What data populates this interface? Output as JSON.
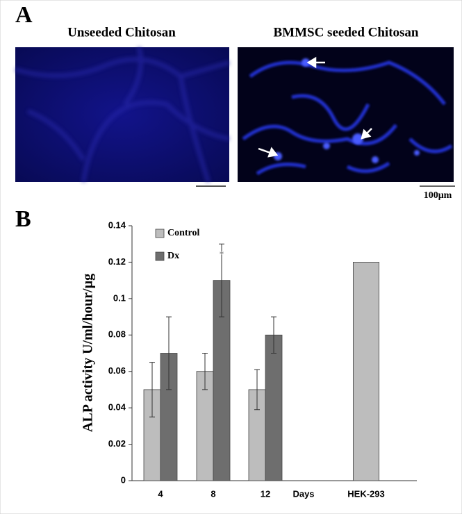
{
  "panel_a": {
    "label": "A",
    "left_caption": "Unseeded Chitosan",
    "right_caption": "BMMSC seeded Chitosan",
    "scale_bar": "100μm"
  },
  "panel_b": {
    "label": "B"
  },
  "chart_data": {
    "type": "bar",
    "y_label": "ALP activity U/ml/hour/µg",
    "x_label": "Days",
    "categories": [
      "4",
      "8",
      "12",
      "HEK-293"
    ],
    "series": [
      {
        "name": "Control",
        "color": "#bdbdbd",
        "values": [
          0.05,
          0.06,
          0.05,
          0.12
        ],
        "errors": [
          0.015,
          0.01,
          0.011,
          null
        ]
      },
      {
        "name": "Dx",
        "color": "#6e6e6e",
        "values": [
          0.07,
          0.11,
          0.08,
          null
        ],
        "errors": [
          0.02,
          0.02,
          0.01,
          null
        ]
      }
    ],
    "annotations": [
      "*"
    ],
    "ylim": [
      0,
      0.14
    ],
    "yticks": [
      0,
      0.02,
      0.04,
      0.06,
      0.08,
      0.1,
      0.12,
      0.14
    ],
    "grid": false
  }
}
